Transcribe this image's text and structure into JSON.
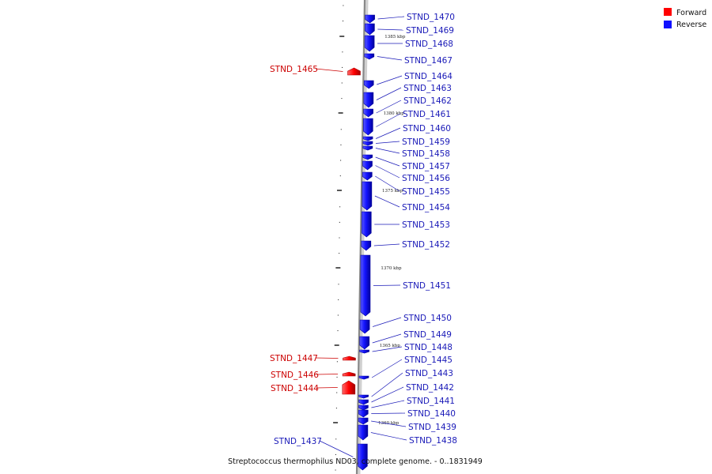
{
  "caption": "Streptococcus thermophilus ND03, complete genome. - 0..1831949",
  "legend": {
    "forward": {
      "label": "Forward",
      "color": "#ff0000"
    },
    "reverse": {
      "label": "Reverse",
      "color": "#1010ff"
    }
  },
  "colors": {
    "forward_label": "#cc0000",
    "reverse_label": "#1a1ab8",
    "backbone": "#888888",
    "backbone_shadow": "#d0d0d0",
    "tick": "#111111"
  },
  "ticks": [
    "1385 kbp",
    "1380 kbp",
    "1375 kbp",
    "1370 kbp",
    "1365 kbp",
    "1360 kbp"
  ],
  "genes": [
    {
      "name": "STND_1470",
      "strand": "reverse"
    },
    {
      "name": "STND_1469",
      "strand": "reverse"
    },
    {
      "name": "STND_1468",
      "strand": "reverse"
    },
    {
      "name": "STND_1467",
      "strand": "reverse"
    },
    {
      "name": "STND_1465",
      "strand": "forward"
    },
    {
      "name": "STND_1464",
      "strand": "reverse"
    },
    {
      "name": "STND_1463",
      "strand": "reverse"
    },
    {
      "name": "STND_1462",
      "strand": "reverse"
    },
    {
      "name": "STND_1461",
      "strand": "reverse"
    },
    {
      "name": "STND_1460",
      "strand": "reverse"
    },
    {
      "name": "STND_1459",
      "strand": "reverse"
    },
    {
      "name": "STND_1458",
      "strand": "reverse"
    },
    {
      "name": "STND_1457",
      "strand": "reverse"
    },
    {
      "name": "STND_1456",
      "strand": "reverse"
    },
    {
      "name": "STND_1455",
      "strand": "reverse"
    },
    {
      "name": "STND_1454",
      "strand": "reverse"
    },
    {
      "name": "STND_1453",
      "strand": "reverse"
    },
    {
      "name": "STND_1452",
      "strand": "reverse"
    },
    {
      "name": "STND_1451",
      "strand": "reverse"
    },
    {
      "name": "STND_1450",
      "strand": "reverse"
    },
    {
      "name": "STND_1449",
      "strand": "reverse"
    },
    {
      "name": "STND_1448",
      "strand": "reverse"
    },
    {
      "name": "STND_1447",
      "strand": "forward"
    },
    {
      "name": "STND_1446",
      "strand": "forward"
    },
    {
      "name": "STND_1445",
      "strand": "reverse"
    },
    {
      "name": "STND_1444",
      "strand": "forward"
    },
    {
      "name": "STND_1443",
      "strand": "reverse"
    },
    {
      "name": "STND_1442",
      "strand": "reverse"
    },
    {
      "name": "STND_1441",
      "strand": "reverse"
    },
    {
      "name": "STND_1440",
      "strand": "reverse"
    },
    {
      "name": "STND_1439",
      "strand": "reverse"
    },
    {
      "name": "STND_1438",
      "strand": "reverse"
    },
    {
      "name": "STND_1437",
      "strand": "reverse"
    }
  ]
}
